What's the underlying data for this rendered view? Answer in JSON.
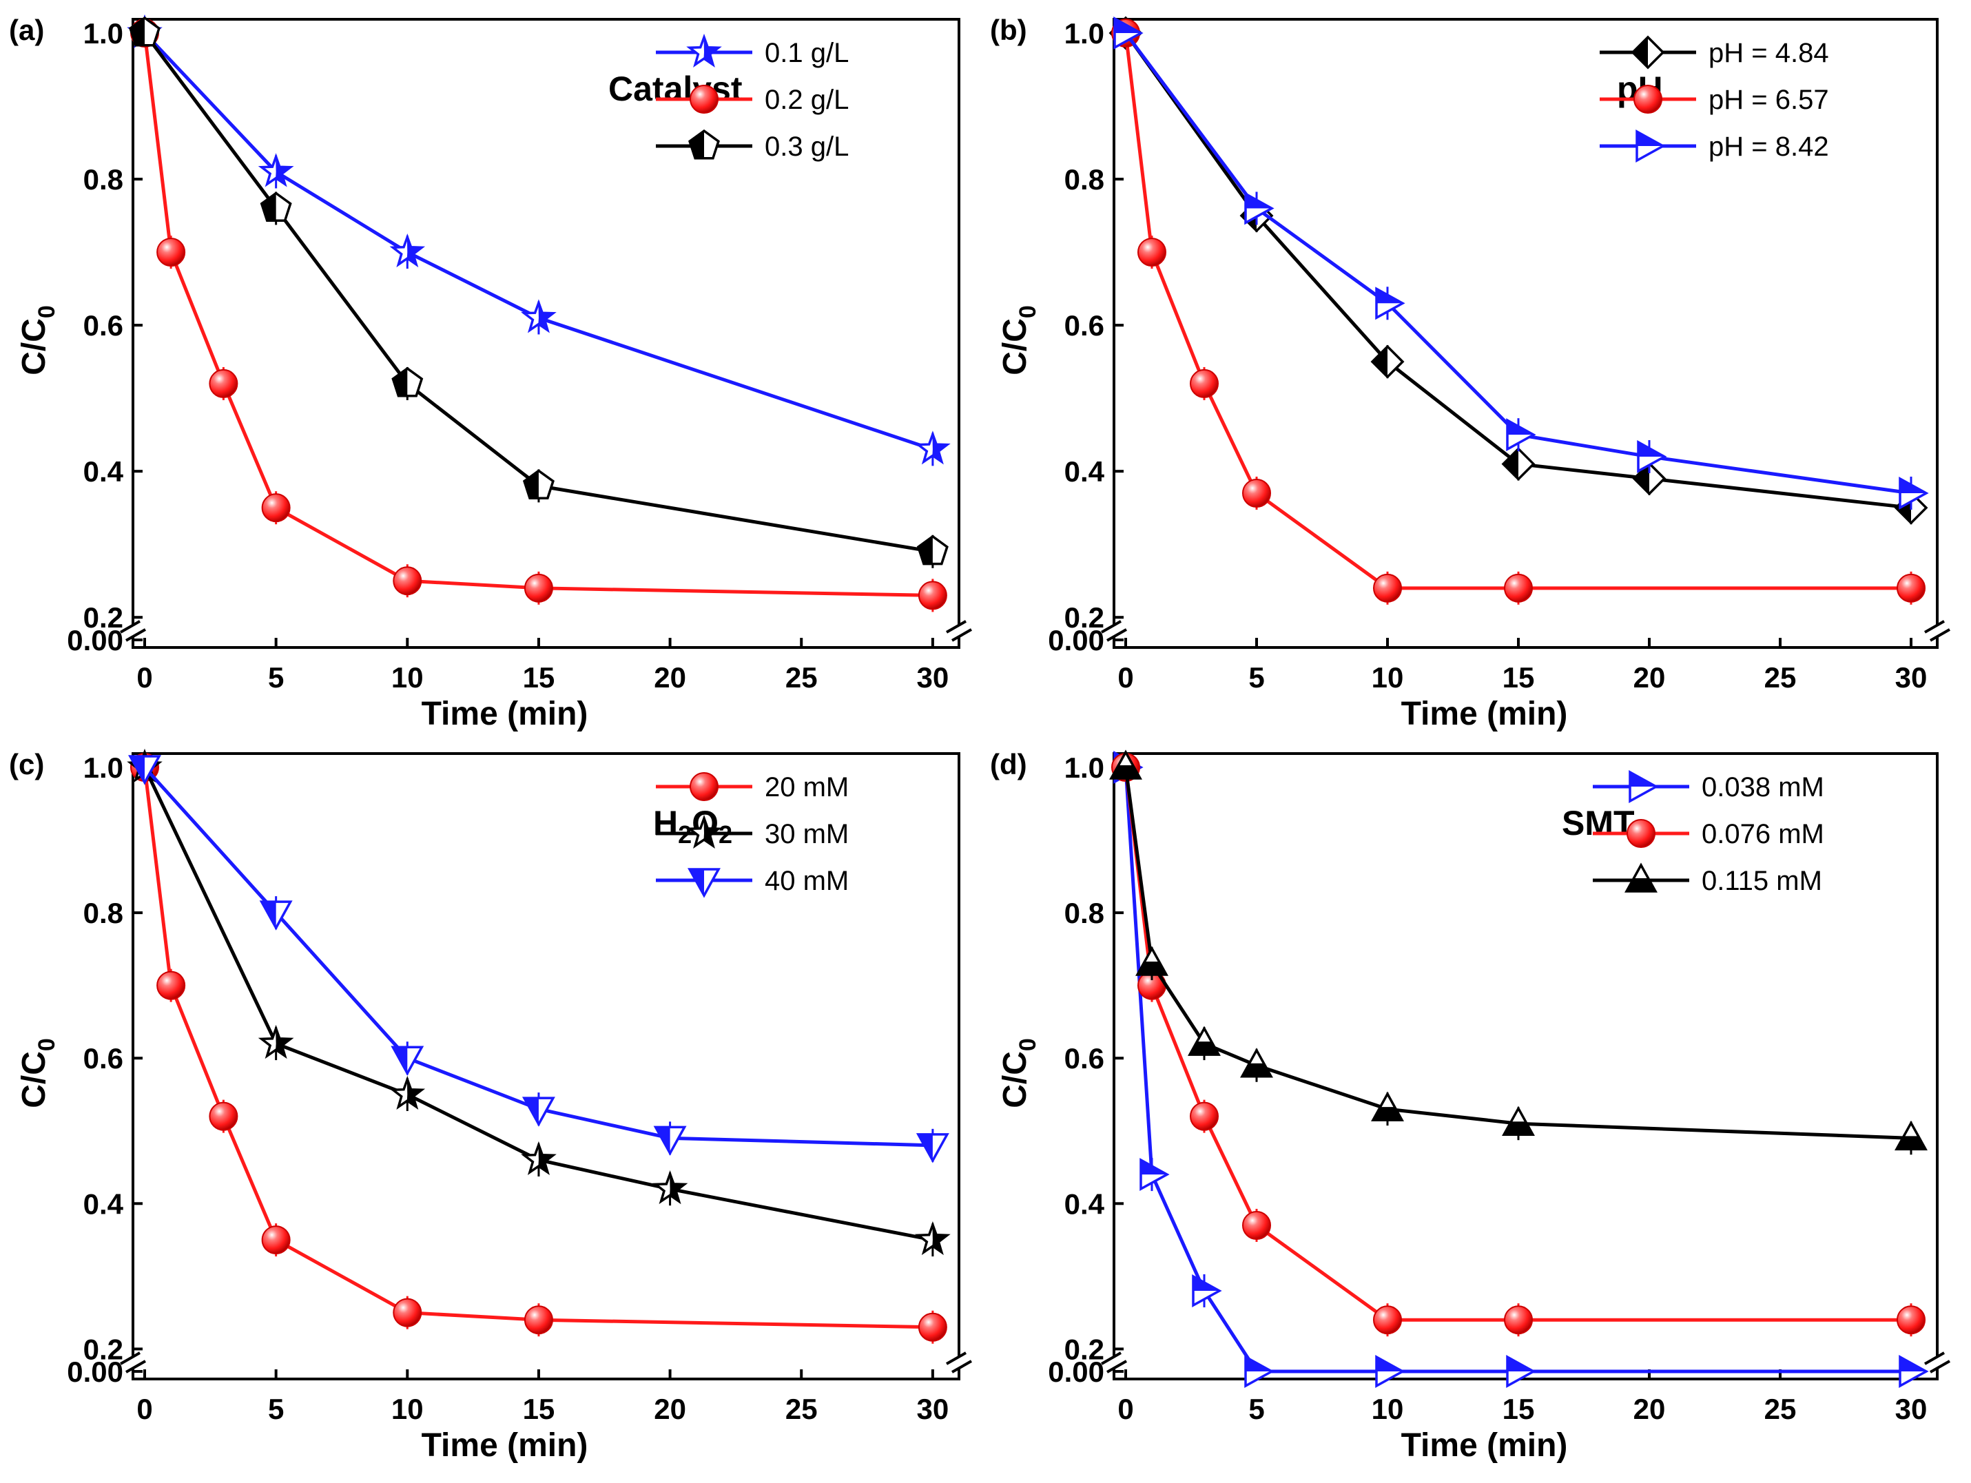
{
  "chart_data": [
    {
      "type": "line",
      "panel_label": "(a)",
      "title": "Catalyst",
      "xlabel": "Time (min)",
      "ylabel": "C/C0",
      "ylabel_main": "C/C",
      "ylabel_sub": "0",
      "xlim": [
        0,
        31
      ],
      "ylim": [
        0.0,
        1.0
      ],
      "y_axis_break": [
        0.0,
        0.2
      ],
      "x_ticks": [
        0,
        5,
        10,
        15,
        20,
        25,
        30
      ],
      "y_ticks": [
        "0.00",
        "0.2",
        "0.4",
        "0.6",
        "0.8",
        "1.0"
      ],
      "legend_position": "top-right",
      "series": [
        {
          "name": "0.1 g/L",
          "color": "#1a1aff",
          "marker": "star",
          "x": [
            0,
            5,
            10,
            15,
            30
          ],
          "values": [
            1.0,
            0.81,
            0.7,
            0.61,
            0.43
          ]
        },
        {
          "name": "0.2 g/L",
          "color": "#ff1a1a",
          "marker": "sphere",
          "x": [
            0,
            1,
            3,
            5,
            10,
            15,
            30
          ],
          "values": [
            1.0,
            0.7,
            0.52,
            0.35,
            0.25,
            0.24,
            0.23
          ]
        },
        {
          "name": "0.3 g/L",
          "color": "#000000",
          "marker": "pentagon",
          "x": [
            0,
            5,
            10,
            15,
            30
          ],
          "values": [
            1.0,
            0.76,
            0.52,
            0.38,
            0.29
          ]
        }
      ]
    },
    {
      "type": "line",
      "panel_label": "(b)",
      "title": "pH",
      "xlabel": "Time (min)",
      "ylabel": "C/C0",
      "ylabel_main": "C/C",
      "ylabel_sub": "0",
      "xlim": [
        0,
        31
      ],
      "ylim": [
        0.0,
        1.0
      ],
      "y_axis_break": [
        0.0,
        0.2
      ],
      "x_ticks": [
        0,
        5,
        10,
        15,
        20,
        25,
        30
      ],
      "y_ticks": [
        "0.00",
        "0.2",
        "0.4",
        "0.6",
        "0.8",
        "1.0"
      ],
      "legend_position": "top-right",
      "series": [
        {
          "name": "pH = 4.84",
          "color": "#000000",
          "marker": "diamond",
          "x": [
            0,
            5,
            10,
            15,
            20,
            30
          ],
          "values": [
            1.0,
            0.75,
            0.55,
            0.41,
            0.39,
            0.35
          ]
        },
        {
          "name": "pH = 6.57",
          "color": "#ff1a1a",
          "marker": "sphere",
          "x": [
            0,
            1,
            3,
            5,
            10,
            15,
            30
          ],
          "values": [
            1.0,
            0.7,
            0.52,
            0.37,
            0.24,
            0.24,
            0.24
          ]
        },
        {
          "name": "pH = 8.42",
          "color": "#1a1aff",
          "marker": "triangle-right",
          "x": [
            0,
            5,
            10,
            15,
            20,
            30
          ],
          "values": [
            1.0,
            0.76,
            0.63,
            0.45,
            0.42,
            0.37
          ]
        }
      ]
    },
    {
      "type": "line",
      "panel_label": "(c)",
      "title": "H2O2",
      "title_parts": [
        "H",
        "2",
        "O",
        "2"
      ],
      "xlabel": "Time (min)",
      "ylabel": "C/C0",
      "ylabel_main": "C/C",
      "ylabel_sub": "0",
      "xlim": [
        0,
        31
      ],
      "ylim": [
        0.0,
        1.0
      ],
      "y_axis_break": [
        0.0,
        0.2
      ],
      "x_ticks": [
        0,
        5,
        10,
        15,
        20,
        25,
        30
      ],
      "y_ticks": [
        "0.00",
        "0.2",
        "0.4",
        "0.6",
        "0.8",
        "1.0"
      ],
      "legend_position": "top-right",
      "series": [
        {
          "name": "20 mM",
          "color": "#ff1a1a",
          "marker": "sphere",
          "x": [
            0,
            1,
            3,
            5,
            10,
            15,
            30
          ],
          "values": [
            1.0,
            0.7,
            0.52,
            0.35,
            0.25,
            0.24,
            0.23
          ]
        },
        {
          "name": "30 mM",
          "color": "#000000",
          "marker": "star",
          "x": [
            0,
            5,
            10,
            15,
            20,
            30
          ],
          "values": [
            1.0,
            0.62,
            0.55,
            0.46,
            0.42,
            0.35
          ]
        },
        {
          "name": "40 mM",
          "color": "#1a1aff",
          "marker": "triangle-down",
          "x": [
            0,
            5,
            10,
            15,
            20,
            30
          ],
          "values": [
            1.0,
            0.8,
            0.6,
            0.53,
            0.49,
            0.48
          ]
        }
      ]
    },
    {
      "type": "line",
      "panel_label": "(d)",
      "title": "SMT",
      "xlabel": "Time (min)",
      "ylabel": "C/C0",
      "ylabel_main": "C/C",
      "ylabel_sub": "0",
      "xlim": [
        0,
        31
      ],
      "ylim": [
        0.0,
        1.0
      ],
      "y_axis_break": [
        0.0,
        0.2
      ],
      "x_ticks": [
        0,
        5,
        10,
        15,
        20,
        25,
        30
      ],
      "y_ticks": [
        "0.00",
        "0.2",
        "0.4",
        "0.6",
        "0.8",
        "1.0"
      ],
      "legend_position": "top-right",
      "series": [
        {
          "name": "0.038 mM",
          "color": "#1a1aff",
          "marker": "triangle-right",
          "x": [
            0,
            1,
            3,
            5,
            10,
            15,
            30
          ],
          "values": [
            1.0,
            0.44,
            0.28,
            0.0,
            0.0,
            0.0,
            0.0
          ]
        },
        {
          "name": "0.076 mM",
          "color": "#ff1a1a",
          "marker": "sphere",
          "x": [
            0,
            1,
            3,
            5,
            10,
            15,
            30
          ],
          "values": [
            1.0,
            0.7,
            0.52,
            0.37,
            0.24,
            0.24,
            0.24
          ]
        },
        {
          "name": "0.115 mM",
          "color": "#000000",
          "marker": "triangle-up",
          "x": [
            0,
            1,
            3,
            5,
            10,
            15,
            30
          ],
          "values": [
            1.0,
            0.73,
            0.62,
            0.59,
            0.53,
            0.51,
            0.49
          ]
        }
      ]
    }
  ]
}
